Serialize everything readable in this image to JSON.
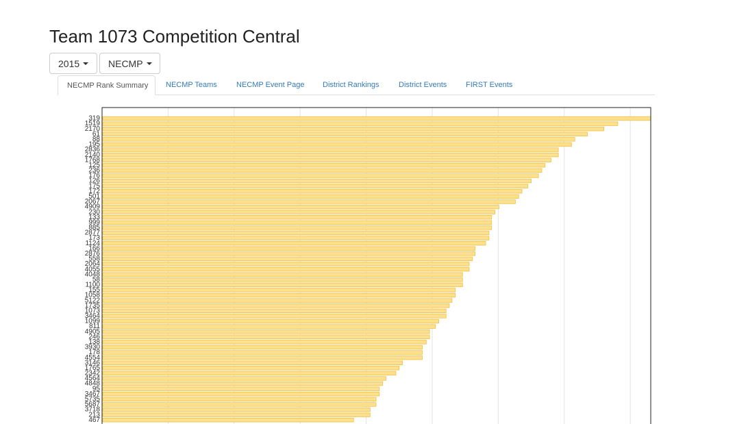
{
  "header": {
    "title": "Team 1073 Competition Central"
  },
  "dropdowns": [
    "2015",
    "NECMP"
  ],
  "tabs": [
    "NECMP Rank Summary",
    "NECMP Teams",
    "NECMP Event Page",
    "District Rankings",
    "District Events",
    "FIRST Events"
  ],
  "chart_data": {
    "type": "hbar",
    "categories": [
      "319",
      "1519",
      "2170",
      "61",
      "88",
      "195",
      "2836",
      "2140",
      "1768",
      "125",
      "236",
      "176",
      "126",
      "175",
      "172",
      "501",
      "2067",
      "4909",
      "230",
      "133",
      "999",
      "885",
      "2877",
      "173",
      "1124",
      "166",
      "2876",
      "558",
      "2064",
      "4055",
      "4048",
      "58",
      "1100",
      "155",
      "1058",
      "5122",
      "1735",
      "1073",
      "3464",
      "1099",
      "811",
      "4905",
      "246",
      "138",
      "3930",
      "178",
      "4554",
      "3146",
      "1765",
      "2342",
      "4564",
      "4848",
      "95",
      "3467",
      "5735",
      "5687",
      "3718",
      "213",
      "467"
    ],
    "values": [
      83.1,
      78.1,
      76.0,
      73.5,
      71.6,
      71.1,
      69.1,
      69.1,
      68.0,
      67.1,
      66.6,
      66.1,
      65.0,
      64.5,
      63.6,
      63.1,
      62.6,
      60.1,
      59.5,
      59.0,
      59.0,
      59.0,
      58.6,
      58.6,
      58.1,
      56.5,
      56.5,
      56.1,
      55.6,
      55.6,
      54.6,
      54.6,
      54.6,
      53.5,
      53.5,
      53.0,
      52.6,
      52.1,
      52.1,
      51.0,
      50.5,
      49.6,
      49.6,
      49.1,
      48.5,
      48.5,
      48.5,
      45.5,
      45.0,
      44.5,
      43.0,
      42.5,
      42.0,
      42.0,
      41.5,
      41.5,
      40.6,
      40.6,
      38.1
    ],
    "color": "#fde08f",
    "xlim": [
      0,
      83.1
    ],
    "xticks": [
      10,
      20,
      30,
      40,
      50,
      60,
      70,
      80
    ],
    "grid": true
  }
}
